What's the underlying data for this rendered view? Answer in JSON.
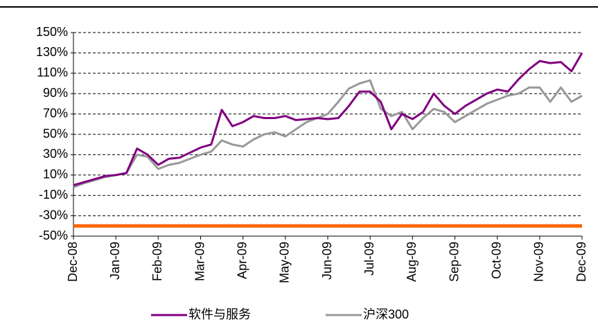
{
  "chart_data": {
    "type": "line",
    "categories": [
      "Dec-08",
      null,
      null,
      null,
      "Jan-09",
      null,
      null,
      null,
      "Feb-09",
      null,
      null,
      null,
      "Mar-09",
      null,
      null,
      null,
      "Apr-09",
      null,
      null,
      null,
      "May-09",
      null,
      null,
      null,
      "Jun-09",
      null,
      null,
      null,
      "Jul-09",
      null,
      null,
      null,
      "Aug-09",
      null,
      null,
      null,
      "Sep-09",
      null,
      null,
      null,
      "Oct-09",
      null,
      null,
      null,
      "Nov-09",
      null,
      null,
      null,
      "Dec-09"
    ],
    "series": [
      {
        "name": "软件与服务",
        "color": "#800080",
        "values": [
          0,
          3,
          6,
          9,
          10,
          12,
          36,
          30,
          20,
          26,
          27,
          32,
          37,
          40,
          74,
          58,
          62,
          68,
          66,
          66,
          68,
          64,
          65,
          66,
          65,
          66,
          78,
          92,
          92,
          82,
          55,
          70,
          65,
          72,
          90,
          78,
          70,
          78,
          84,
          90,
          94,
          92,
          104,
          114,
          122,
          120,
          121,
          112,
          130
        ]
      },
      {
        "name": "沪深300",
        "color": "#999999",
        "values": [
          -2,
          2,
          5,
          8,
          10,
          12,
          30,
          28,
          16,
          20,
          22,
          26,
          30,
          33,
          44,
          40,
          38,
          45,
          50,
          52,
          48,
          55,
          62,
          66,
          70,
          82,
          95,
          100,
          103,
          75,
          68,
          72,
          55,
          66,
          75,
          72,
          62,
          68,
          74,
          80,
          84,
          88,
          90,
          96,
          96,
          82,
          96,
          82,
          88
        ]
      }
    ],
    "reference_line": {
      "value": -40,
      "color": "#ff6600"
    },
    "ylim": [
      -50,
      150
    ],
    "yticks": [
      {
        "value": -50,
        "label": "-50%"
      },
      {
        "value": -30,
        "label": "-30%"
      },
      {
        "value": -10,
        "label": "-10%"
      },
      {
        "value": 10,
        "label": "10%"
      },
      {
        "value": 30,
        "label": "30%"
      },
      {
        "value": 50,
        "label": "50%"
      },
      {
        "value": 70,
        "label": "70%"
      },
      {
        "value": 90,
        "label": "90%"
      },
      {
        "value": 110,
        "label": "110%"
      },
      {
        "value": 130,
        "label": "130%"
      },
      {
        "value": 150,
        "label": "150%"
      }
    ],
    "grid": true,
    "legend": "bottom"
  }
}
